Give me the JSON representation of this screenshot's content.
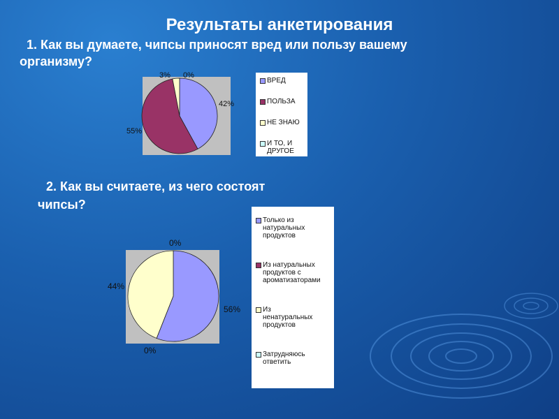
{
  "slide": {
    "title": "Результаты анкетирования",
    "question1_line1": "1. Как вы думаете,  чипсы приносят вред или пользу вашему",
    "question1_line2": "организму?",
    "question2_line1": "2. Как вы считаете, из чего состоят",
    "question2_line2": "чипсы?"
  },
  "chart_data": [
    {
      "type": "pie",
      "categories": [
        "ВРЕД",
        "ПОЛЬЗА",
        "НЕ ЗНАЮ",
        "И ТО, И ДРУГОЕ"
      ],
      "values": [
        42,
        55,
        3,
        0
      ],
      "data_labels": [
        "42%",
        "55%",
        "3%",
        "0%"
      ],
      "colors": [
        "#9999ff",
        "#993366",
        "#ffffcc",
        "#ccffff"
      ],
      "legend": "right"
    },
    {
      "type": "pie",
      "categories": [
        "Только из натуральных продуктов",
        "Из натуральных продуктов с ароматизаторами",
        "Из ненатуральных продуктов",
        "Затрудняюсь ответить"
      ],
      "legend_lines": [
        [
          "Только из",
          "натуральных",
          "продуктов"
        ],
        [
          "Из натуральных",
          "продуктов с",
          "ароматизаторами"
        ],
        [
          "Из",
          "ненатуральных",
          "продуктов"
        ],
        [
          "Затрудняюсь",
          "ответить"
        ]
      ],
      "values": [
        56,
        0,
        44,
        0
      ],
      "data_labels": [
        "56%",
        "0%",
        "44%",
        "0%"
      ],
      "colors": [
        "#9999ff",
        "#993366",
        "#ffffcc",
        "#ccffff"
      ],
      "legend": "right"
    }
  ]
}
